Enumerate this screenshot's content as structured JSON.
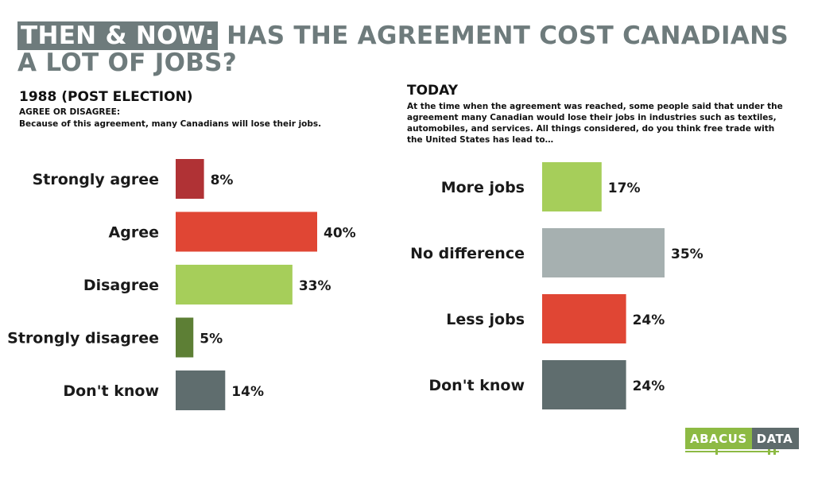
{
  "title": {
    "highlight": "THEN & NOW:",
    "rest": " HAS THE AGREEMENT COST CANADIANS A LOT OF JOBS?"
  },
  "left_panel": {
    "heading": "1988 (POST ELECTION)",
    "question_line1": "AGREE OR DISAGREE:",
    "question_line2": "Because of this agreement, many Canadians will lose their jobs."
  },
  "right_panel": {
    "heading": "TODAY",
    "question": "At the time when the agreement was reached, some people said that under the agreement many Canadian would lose their jobs in industries such as textiles, automobiles, and services. All things considered, do you think free trade with the United States has lead to…"
  },
  "logo": {
    "part1": "ABACUS",
    "part2": "DATA"
  },
  "chart_data": [
    {
      "type": "bar",
      "orientation": "horizontal",
      "categories": [
        "Strongly agree",
        "Agree",
        "Disagree",
        "Strongly disagree",
        "Don't know"
      ],
      "values": [
        8,
        40,
        33,
        5,
        14
      ],
      "labels": [
        "8%",
        "40%",
        "33%",
        "5%",
        "14%"
      ],
      "colors": [
        "#b03235",
        "#e04634",
        "#a6ce5a",
        "#5d7f35",
        "#5f6d6e"
      ],
      "unit": "%"
    },
    {
      "type": "bar",
      "orientation": "horizontal",
      "categories": [
        "More jobs",
        "No difference",
        "Less jobs",
        "Don't know"
      ],
      "values": [
        17,
        35,
        24,
        24
      ],
      "labels": [
        "17%",
        "35%",
        "24%",
        "24%"
      ],
      "colors": [
        "#a6ce5a",
        "#a6b0b0",
        "#e04634",
        "#5f6d6e"
      ],
      "unit": "%"
    }
  ]
}
